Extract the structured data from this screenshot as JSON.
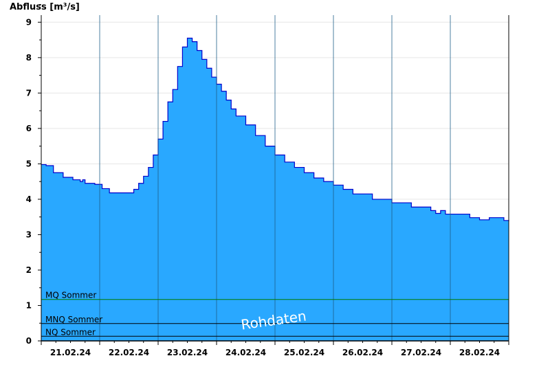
{
  "chart_data": {
    "type": "area",
    "ylabel": "Abfluss [m³/s]",
    "xlabel": "",
    "title": "",
    "ylim": [
      0,
      9.2
    ],
    "yticks": [
      0,
      1,
      2,
      3,
      4,
      5,
      6,
      7,
      8,
      9
    ],
    "x_range_hours": [
      0,
      192
    ],
    "date_ticks": [
      "21.02.24",
      "22.02.24",
      "23.02.24",
      "24.02.24",
      "25.02.24",
      "26.02.24",
      "27.02.24",
      "28.02.24"
    ],
    "grid": true,
    "fill_color": "#29a8ff",
    "line_color": "#0000cc",
    "series": [
      {
        "x_hours": [
          0,
          2,
          5,
          9,
          13,
          16,
          17,
          18,
          22,
          25,
          28,
          34,
          38,
          40,
          42,
          44,
          46,
          48,
          50,
          52,
          54,
          56,
          58,
          60,
          62,
          64,
          66,
          68,
          70,
          72,
          74,
          76,
          78,
          80,
          84,
          88,
          92,
          96,
          100,
          104,
          108,
          112,
          116,
          120,
          124,
          128,
          136,
          144,
          152,
          160,
          162,
          164,
          166,
          176,
          180,
          184,
          190,
          192
        ],
        "values": [
          4.98,
          4.95,
          4.75,
          4.62,
          4.55,
          4.5,
          4.55,
          4.45,
          4.42,
          4.3,
          4.18,
          4.18,
          4.28,
          4.45,
          4.65,
          4.9,
          5.25,
          5.7,
          6.2,
          6.75,
          7.1,
          7.75,
          8.3,
          8.55,
          8.45,
          8.2,
          7.95,
          7.7,
          7.45,
          7.25,
          7.05,
          6.8,
          6.55,
          6.35,
          6.1,
          5.8,
          5.5,
          5.25,
          5.05,
          4.9,
          4.75,
          4.6,
          4.5,
          4.4,
          4.28,
          4.15,
          4.0,
          3.9,
          3.78,
          3.68,
          3.6,
          3.68,
          3.58,
          3.48,
          3.42,
          3.48,
          3.4,
          3.38
        ]
      }
    ],
    "reference_lines": [
      {
        "label": "MQ Sommer",
        "value": 1.17,
        "color": "#007a00"
      },
      {
        "label": "MNQ Sommer",
        "value": 0.49,
        "color": "#000000"
      },
      {
        "label": "NQ Sommer",
        "value": 0.13,
        "color": "#000000"
      }
    ],
    "watermark": "Rohdaten"
  }
}
